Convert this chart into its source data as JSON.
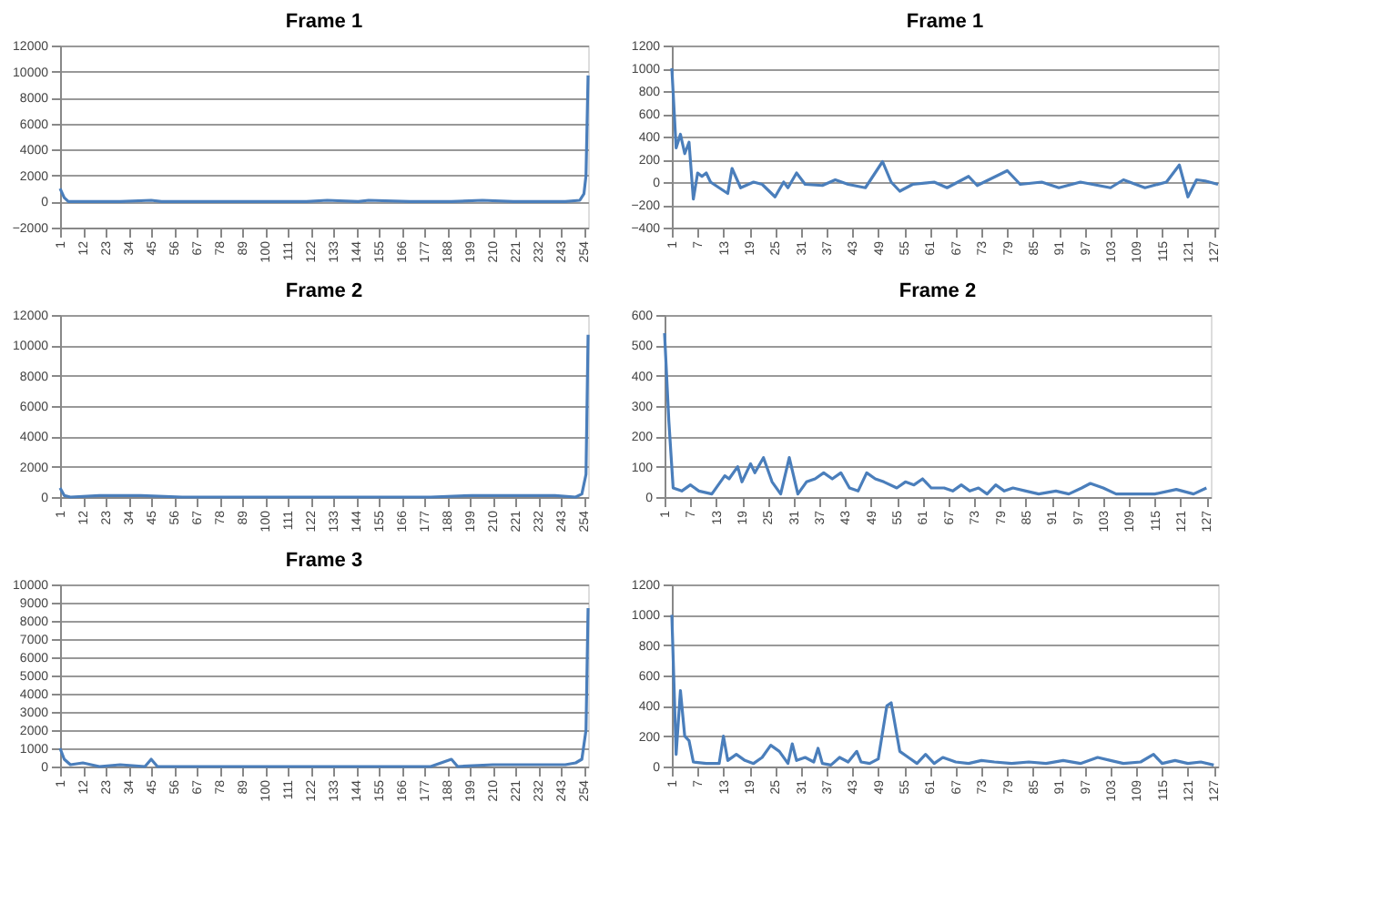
{
  "chart_data": [
    {
      "type": "line",
      "title": "Frame 1",
      "color": "#4a7ebb",
      "grid": "y",
      "xlim": [
        1,
        256
      ],
      "xticks": [
        1,
        12,
        23,
        34,
        45,
        56,
        67,
        78,
        89,
        100,
        111,
        122,
        133,
        144,
        155,
        166,
        177,
        188,
        199,
        210,
        221,
        232,
        243,
        254
      ],
      "ylim": [
        -2000,
        12000
      ],
      "yticks": [
        -2000,
        0,
        2000,
        4000,
        6000,
        8000,
        10000,
        12000
      ],
      "x": [
        1,
        3,
        5,
        10,
        20,
        30,
        45,
        50,
        70,
        85,
        100,
        120,
        130,
        145,
        150,
        170,
        190,
        205,
        220,
        235,
        245,
        252,
        254,
        255,
        256
      ],
      "values": [
        1000,
        300,
        0,
        0,
        0,
        0,
        100,
        0,
        0,
        0,
        0,
        0,
        100,
        0,
        100,
        0,
        0,
        100,
        0,
        0,
        0,
        100,
        600,
        2000,
        9700
      ]
    },
    {
      "type": "line",
      "title": "Frame 1",
      "color": "#4a7ebb",
      "grid": "y",
      "xlim": [
        1,
        128
      ],
      "xticks": [
        1,
        7,
        13,
        19,
        25,
        31,
        37,
        43,
        49,
        55,
        61,
        67,
        73,
        79,
        85,
        91,
        97,
        103,
        109,
        115,
        121,
        127
      ],
      "ylim": [
        -400,
        1200
      ],
      "yticks": [
        -400,
        -200,
        0,
        200,
        400,
        600,
        800,
        1000,
        1200
      ],
      "x": [
        1,
        2,
        3,
        4,
        5,
        6,
        7,
        8,
        9,
        10,
        12,
        14,
        15,
        17,
        20,
        22,
        25,
        27,
        28,
        30,
        32,
        36,
        39,
        42,
        46,
        50,
        52,
        54,
        57,
        62,
        65,
        70,
        72,
        79,
        82,
        87,
        91,
        96,
        103,
        106,
        111,
        116,
        119,
        121,
        123,
        125,
        128
      ],
      "values": [
        1000,
        300,
        420,
        250,
        350,
        -150,
        80,
        50,
        80,
        0,
        -50,
        -100,
        120,
        -50,
        0,
        -20,
        -130,
        0,
        -50,
        80,
        -20,
        -30,
        20,
        -20,
        -50,
        180,
        0,
        -80,
        -20,
        0,
        -50,
        50,
        -30,
        100,
        -20,
        0,
        -50,
        0,
        -50,
        20,
        -50,
        0,
        150,
        -130,
        20,
        10,
        -20
      ]
    },
    {
      "type": "line",
      "title": "Frame 2",
      "color": "#4a7ebb",
      "grid": "y",
      "xlim": [
        1,
        256
      ],
      "xticks": [
        1,
        12,
        23,
        34,
        45,
        56,
        67,
        78,
        89,
        100,
        111,
        122,
        133,
        144,
        155,
        166,
        177,
        188,
        199,
        210,
        221,
        232,
        243,
        254
      ],
      "ylim": [
        0,
        12000
      ],
      "yticks": [
        0,
        2000,
        4000,
        6000,
        8000,
        10000,
        12000
      ],
      "x": [
        1,
        3,
        6,
        20,
        40,
        60,
        80,
        100,
        120,
        140,
        160,
        180,
        200,
        220,
        240,
        250,
        253,
        255,
        256
      ],
      "values": [
        600,
        100,
        0,
        100,
        100,
        0,
        0,
        0,
        0,
        0,
        0,
        0,
        100,
        100,
        100,
        0,
        200,
        1500,
        10700
      ]
    },
    {
      "type": "line",
      "title": "Frame 2",
      "color": "#4a7ebb",
      "grid": "y",
      "xlim": [
        1,
        128
      ],
      "xticks": [
        1,
        7,
        13,
        19,
        25,
        31,
        37,
        43,
        49,
        55,
        61,
        67,
        73,
        79,
        85,
        91,
        97,
        103,
        109,
        115,
        121,
        127
      ],
      "ylim": [
        0,
        600
      ],
      "yticks": [
        0,
        100,
        200,
        300,
        400,
        500,
        600
      ],
      "x": [
        1,
        2,
        3,
        5,
        7,
        9,
        12,
        15,
        16,
        18,
        19,
        21,
        22,
        24,
        26,
        28,
        30,
        32,
        34,
        36,
        38,
        40,
        42,
        44,
        46,
        48,
        50,
        52,
        55,
        57,
        59,
        61,
        63,
        66,
        68,
        70,
        72,
        74,
        76,
        78,
        80,
        82,
        85,
        88,
        92,
        95,
        98,
        100,
        103,
        106,
        110,
        115,
        120,
        124,
        127
      ],
      "values": [
        540,
        250,
        30,
        20,
        40,
        20,
        10,
        70,
        60,
        100,
        50,
        110,
        80,
        130,
        50,
        10,
        130,
        10,
        50,
        60,
        80,
        60,
        80,
        30,
        20,
        80,
        60,
        50,
        30,
        50,
        40,
        60,
        30,
        30,
        20,
        40,
        20,
        30,
        10,
        40,
        20,
        30,
        20,
        10,
        20,
        10,
        30,
        45,
        30,
        10,
        10,
        10,
        25,
        10,
        30
      ]
    },
    {
      "type": "line",
      "title": "Frame 3",
      "color": "#4a7ebb",
      "grid": "y",
      "xlim": [
        1,
        256
      ],
      "xticks": [
        1,
        12,
        23,
        34,
        45,
        56,
        67,
        78,
        89,
        100,
        111,
        122,
        133,
        144,
        155,
        166,
        177,
        188,
        199,
        210,
        221,
        232,
        243,
        254
      ],
      "ylim": [
        0,
        10000
      ],
      "yticks": [
        0,
        1000,
        2000,
        3000,
        4000,
        5000,
        6000,
        7000,
        8000,
        9000,
        10000
      ],
      "x": [
        1,
        3,
        6,
        12,
        20,
        30,
        42,
        45,
        48,
        60,
        90,
        120,
        150,
        180,
        190,
        193,
        210,
        230,
        245,
        250,
        253,
        255,
        256
      ],
      "values": [
        1000,
        400,
        100,
        200,
        0,
        100,
        0,
        400,
        0,
        0,
        0,
        0,
        0,
        0,
        400,
        0,
        100,
        100,
        100,
        200,
        400,
        2000,
        8700
      ]
    },
    {
      "type": "line",
      "color": "#4a7ebb",
      "grid": "y",
      "xlim": [
        1,
        128
      ],
      "xticks": [
        1,
        7,
        13,
        19,
        25,
        31,
        37,
        43,
        49,
        55,
        61,
        67,
        73,
        79,
        85,
        91,
        97,
        103,
        109,
        115,
        121,
        127
      ],
      "ylim": [
        0,
        1200
      ],
      "yticks": [
        0,
        200,
        400,
        600,
        800,
        1000,
        1200
      ],
      "x": [
        1,
        2,
        3,
        4,
        5,
        6,
        9,
        12,
        13,
        14,
        16,
        18,
        20,
        22,
        24,
        26,
        28,
        29,
        30,
        32,
        34,
        35,
        36,
        38,
        40,
        42,
        44,
        45,
        47,
        49,
        51,
        52,
        54,
        56,
        58,
        60,
        62,
        64,
        67,
        70,
        73,
        76,
        80,
        84,
        88,
        92,
        96,
        100,
        103,
        106,
        110,
        113,
        115,
        118,
        121,
        124,
        127
      ],
      "values": [
        1000,
        80,
        500,
        200,
        170,
        30,
        20,
        20,
        200,
        40,
        80,
        40,
        20,
        60,
        140,
        100,
        20,
        150,
        40,
        60,
        30,
        120,
        20,
        10,
        60,
        30,
        100,
        30,
        20,
        50,
        400,
        420,
        100,
        60,
        20,
        80,
        20,
        60,
        30,
        20,
        40,
        30,
        20,
        30,
        20,
        40,
        20,
        60,
        40,
        20,
        30,
        80,
        20,
        40,
        20,
        30,
        10
      ]
    }
  ]
}
